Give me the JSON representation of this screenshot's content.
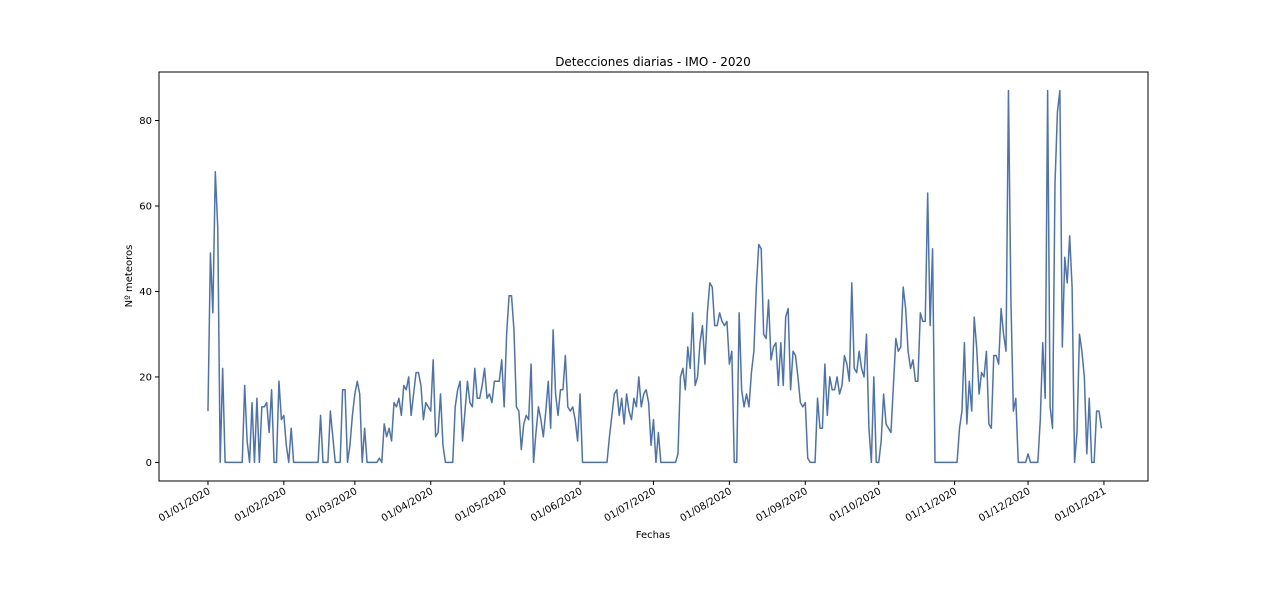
{
  "chart_data": {
    "type": "line",
    "title": "Detecciones diarias - IMO - 2020",
    "xlabel": "Fechas",
    "ylabel": "Nº meteoros",
    "grid": false,
    "line_color": "#4c72b0",
    "x_start": "2020-01-01",
    "x_end": "2020-12-31",
    "xlim": [
      "2019-12-12",
      "2021-01-19"
    ],
    "ylim": [
      -4.35,
      91.35
    ],
    "x_ticks": [
      {
        "date": "2020-01-01",
        "label": "01/01/2020"
      },
      {
        "date": "2020-02-01",
        "label": "01/02/2020"
      },
      {
        "date": "2020-03-01",
        "label": "01/03/2020"
      },
      {
        "date": "2020-04-01",
        "label": "01/04/2020"
      },
      {
        "date": "2020-05-01",
        "label": "01/05/2020"
      },
      {
        "date": "2020-06-01",
        "label": "01/06/2020"
      },
      {
        "date": "2020-07-01",
        "label": "01/07/2020"
      },
      {
        "date": "2020-08-01",
        "label": "01/08/2020"
      },
      {
        "date": "2020-09-01",
        "label": "01/09/2020"
      },
      {
        "date": "2020-10-01",
        "label": "01/10/2020"
      },
      {
        "date": "2020-11-01",
        "label": "01/11/2020"
      },
      {
        "date": "2020-12-01",
        "label": "01/12/2020"
      },
      {
        "date": "2021-01-01",
        "label": "01/01/2021"
      }
    ],
    "y_ticks": [
      0,
      20,
      40,
      60,
      80
    ],
    "values": [
      12,
      49,
      35,
      68,
      55,
      0,
      22,
      0,
      0,
      0,
      0,
      0,
      0,
      0,
      0,
      18,
      5,
      0,
      14,
      0,
      15,
      0,
      13,
      13,
      14,
      7,
      17,
      0,
      0,
      19,
      10,
      11,
      4,
      0,
      8,
      0,
      0,
      0,
      0,
      0,
      0,
      0,
      0,
      0,
      0,
      0,
      11,
      0,
      0,
      0,
      12,
      6,
      0,
      0,
      0,
      17,
      17,
      0,
      4,
      11,
      16,
      19,
      16,
      0,
      8,
      0,
      0,
      0,
      0,
      0,
      1,
      0,
      9,
      6,
      8,
      5,
      14,
      13,
      15,
      11,
      18,
      17,
      20,
      11,
      16,
      21,
      21,
      18,
      10,
      14,
      13,
      12,
      24,
      6,
      7,
      16,
      4,
      0,
      0,
      0,
      0,
      13,
      17,
      19,
      5,
      12,
      19,
      14,
      13,
      22,
      15,
      15,
      18,
      22,
      15,
      16,
      14,
      19,
      19,
      19,
      24,
      13,
      30,
      39,
      39,
      31,
      13,
      12,
      3,
      9,
      11,
      10,
      23,
      0,
      7,
      13,
      10,
      6,
      12,
      19,
      8,
      31,
      16,
      11,
      17,
      17,
      25,
      13,
      12,
      13,
      10,
      5,
      16,
      0,
      0,
      0,
      0,
      0,
      0,
      0,
      0,
      0,
      0,
      0,
      6,
      11,
      16,
      17,
      11,
      15,
      9,
      16,
      12,
      10,
      15,
      13,
      20,
      13,
      16,
      17,
      14,
      4,
      10,
      0,
      7,
      0,
      0,
      0,
      0,
      0,
      0,
      0,
      2,
      20,
      22,
      17,
      27,
      22,
      35,
      18,
      20,
      28,
      32,
      23,
      35,
      42,
      41,
      32,
      32,
      35,
      33,
      32,
      33,
      23,
      26,
      0,
      0,
      35,
      17,
      13,
      16,
      13,
      21,
      26,
      41,
      51,
      50,
      30,
      29,
      38,
      24,
      27,
      28,
      18,
      28,
      18,
      34,
      36,
      17,
      26,
      25,
      20,
      14,
      13,
      14,
      1,
      0,
      0,
      0,
      15,
      8,
      8,
      23,
      11,
      20,
      17,
      17,
      20,
      16,
      18,
      25,
      23,
      19,
      42,
      22,
      21,
      26,
      22,
      20,
      30,
      8,
      0,
      20,
      0,
      0,
      5,
      16,
      9,
      8,
      7,
      18,
      29,
      26,
      27,
      41,
      36,
      26,
      22,
      24,
      19,
      19,
      35,
      33,
      33,
      63,
      32,
      50,
      0,
      0,
      0,
      0,
      0,
      0,
      0,
      0,
      0,
      0,
      8,
      12,
      28,
      9,
      19,
      12,
      34,
      27,
      16,
      21,
      20,
      26,
      9,
      8,
      25,
      25,
      23,
      36,
      30,
      26,
      87,
      38,
      12,
      15,
      0,
      0,
      0,
      0,
      2,
      0,
      0,
      0,
      0,
      10,
      28,
      15,
      87,
      13,
      8,
      65,
      82,
      87,
      27,
      48,
      42,
      53,
      41,
      0,
      7,
      30,
      26,
      20,
      2,
      15,
      0,
      0,
      12,
      12,
      8
    ]
  }
}
